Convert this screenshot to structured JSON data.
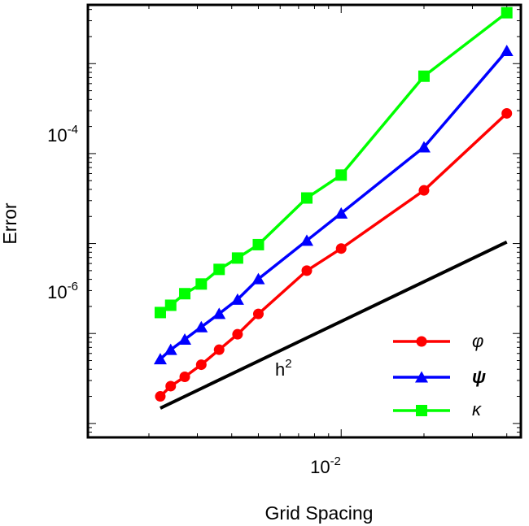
{
  "chart_data": {
    "type": "line",
    "xscale": "log",
    "yscale": "log",
    "xlabel": "Grid Spacing",
    "ylabel": "Error",
    "xlim": [
      0.0012,
      0.045
    ],
    "ylim": [
      7e-08,
      0.0045
    ],
    "xticks": [
      {
        "value": 0.01,
        "base": "10",
        "exp": "-2"
      }
    ],
    "yticks": [
      {
        "value": 0.0001,
        "base": "10",
        "exp": "-4"
      },
      {
        "value": 1e-06,
        "base": "10",
        "exp": "-6"
      }
    ],
    "legend_position": "bottom-right",
    "series": [
      {
        "name": "φ",
        "color": "#ff0000",
        "marker": "circle",
        "x": [
          0.0022,
          0.0024,
          0.0027,
          0.0031,
          0.0036,
          0.0042,
          0.005,
          0.0075,
          0.01,
          0.02,
          0.04
        ],
        "y": [
          2e-07,
          2.6e-07,
          3.3e-07,
          4.5e-07,
          6.6e-07,
          9.8e-07,
          1.65e-06,
          5e-06,
          8.8e-06,
          3.9e-05,
          0.00028
        ]
      },
      {
        "name": "ψ",
        "color": "#0000ff",
        "marker": "triangle",
        "x": [
          0.0022,
          0.0024,
          0.0027,
          0.0031,
          0.0036,
          0.0042,
          0.005,
          0.0075,
          0.01,
          0.02,
          0.04
        ],
        "y": [
          5.2e-07,
          6.6e-07,
          8.6e-07,
          1.18e-06,
          1.66e-06,
          2.39e-06,
          4.04e-06,
          1.08e-05,
          2.17e-05,
          0.000118,
          0.00139
        ]
      },
      {
        "name": "κ",
        "color": "#00ff00",
        "marker": "square",
        "x": [
          0.0022,
          0.0024,
          0.0027,
          0.0031,
          0.0036,
          0.0042,
          0.005,
          0.0075,
          0.01,
          0.02,
          0.04
        ],
        "y": [
          1.71e-06,
          2.06e-06,
          2.77e-06,
          3.55e-06,
          5.16e-06,
          6.9e-06,
          9.72e-06,
          3.21e-05,
          5.77e-05,
          0.000725,
          0.00368
        ]
      }
    ],
    "reference_line": {
      "label": "h",
      "label_exp": "2",
      "color": "#000000",
      "x": [
        0.0022,
        0.04
      ],
      "y": [
        1.48e-07,
        1.04e-05
      ]
    }
  }
}
